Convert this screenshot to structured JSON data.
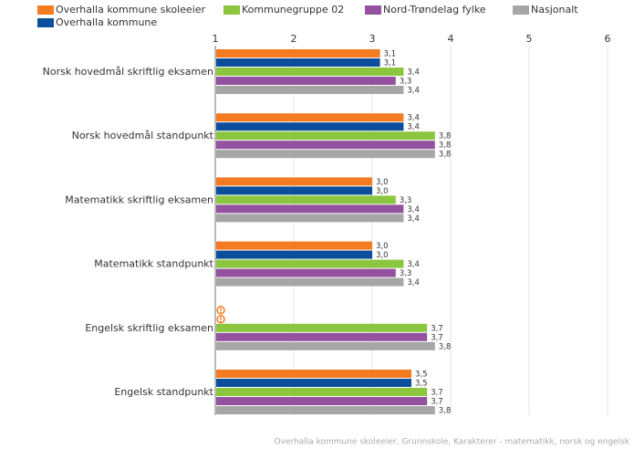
{
  "chart_data": {
    "type": "hbar",
    "footnote": "Overhalla kommune skoleeier, Grunnskole, Karakterer - matematikk, norsk og engelsk",
    "categories": [
      "Norsk hovedmål skriftlig eksamen",
      "Norsk hovedmål standpunkt",
      "Matematikk skriftlig eksamen",
      "Matematikk standpunkt",
      "Engelsk skriftlig eksamen",
      "Engelsk standpunkt"
    ],
    "series": [
      {
        "name": "Overhalla kommune skoleeier",
        "color": "#f47b20",
        "values": [
          3.1,
          3.4,
          3.0,
          3.0,
          null,
          3.5
        ],
        "value_labels": [
          "3,1",
          "3,4",
          "3,0",
          "3,0",
          null,
          "3,5"
        ]
      },
      {
        "name": "Overhalla kommune",
        "color": "#0b4f9c",
        "values": [
          3.1,
          3.4,
          3.0,
          3.0,
          null,
          3.5
        ],
        "value_labels": [
          "3,1",
          "3,4",
          "3,0",
          "3,0",
          null,
          "3,5"
        ]
      },
      {
        "name": "Kommunegruppe 02",
        "color": "#8cc63f",
        "values": [
          3.4,
          3.8,
          3.3,
          3.4,
          3.7,
          3.7
        ],
        "value_labels": [
          "3,4",
          "3,8",
          "3,3",
          "3,4",
          "3,7",
          "3,7"
        ]
      },
      {
        "name": "Nord-Trøndelag fylke",
        "color": "#94519f",
        "values": [
          3.3,
          3.8,
          3.4,
          3.3,
          3.7,
          3.7
        ],
        "value_labels": [
          "3,3",
          "3,8",
          "3,4",
          "3,3",
          "3,7",
          "3,7"
        ]
      },
      {
        "name": "Nasjonalt",
        "color": "#a6a6a6",
        "values": [
          3.4,
          3.8,
          3.4,
          3.4,
          3.8,
          3.8
        ],
        "value_labels": [
          "3,4",
          "3,8",
          "3,4",
          "3,4",
          "3,8",
          "3,8"
        ]
      }
    ],
    "xlim": [
      1,
      6
    ],
    "xticks": [
      1,
      2,
      3,
      4,
      5,
      6
    ],
    "grid": true
  }
}
